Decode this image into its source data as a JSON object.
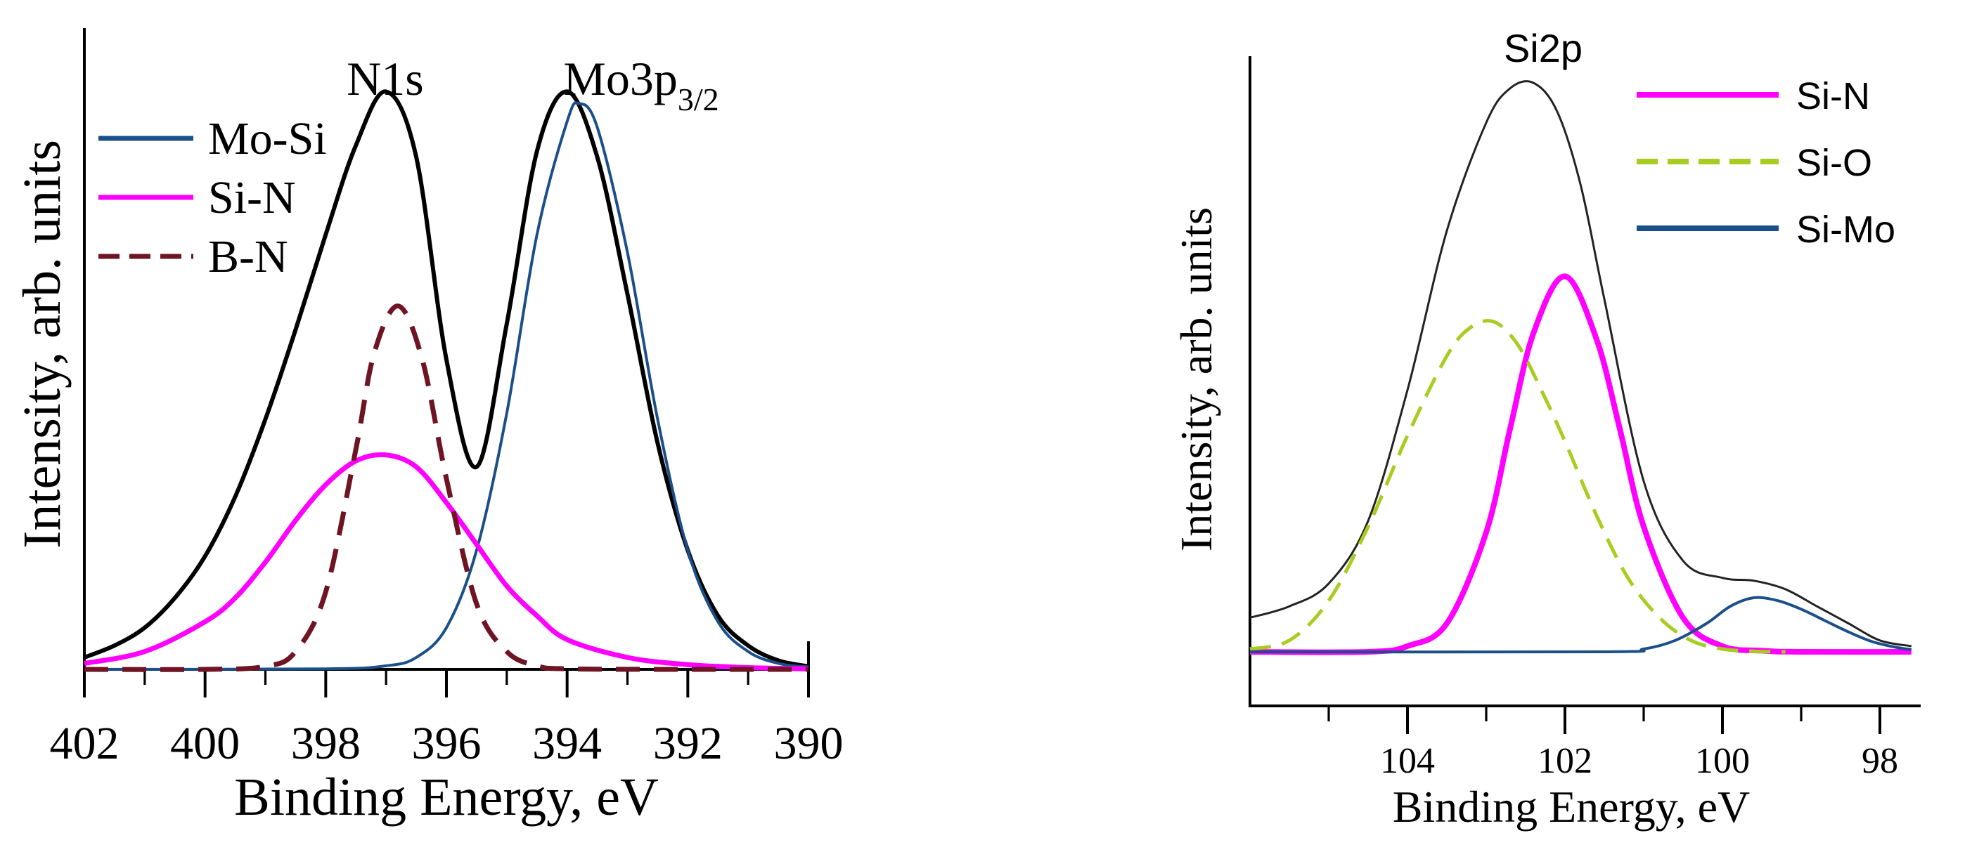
{
  "chart_data": [
    {
      "type": "line",
      "title": "",
      "xlabel": "Binding Energy, eV",
      "ylabel": "Intensity, arb. units",
      "xlim": [
        402,
        390
      ],
      "ylim": [
        0,
        1.0
      ],
      "x_ticks": [
        402,
        400,
        398,
        396,
        394,
        392,
        390
      ],
      "x_minor_ticks": [
        401,
        399,
        397,
        395,
        393,
        391
      ],
      "peak_labels": [
        {
          "text": "N1s",
          "x": 396.8
        },
        {
          "text": "Mo3p",
          "sub": "3/2",
          "x": 393.8
        }
      ],
      "legend": {
        "position": "top-left",
        "entries": [
          "Mo-Si",
          "Si-N",
          "B-N"
        ]
      },
      "series": [
        {
          "name": "Envelope",
          "color": "#000000",
          "dash": "solid",
          "in_legend": false,
          "x": [
            402,
            401.5,
            401,
            400.5,
            400,
            399.5,
            399,
            398.5,
            398,
            397.5,
            397,
            396.5,
            396,
            395.5,
            395,
            394.5,
            394,
            393.5,
            393,
            392.5,
            392,
            391.5,
            391,
            390.5,
            390
          ],
          "y": [
            0.02,
            0.04,
            0.07,
            0.12,
            0.19,
            0.29,
            0.42,
            0.57,
            0.73,
            0.88,
            0.97,
            0.86,
            0.52,
            0.34,
            0.58,
            0.87,
            0.97,
            0.86,
            0.63,
            0.38,
            0.2,
            0.09,
            0.04,
            0.015,
            0.005
          ]
        },
        {
          "name": "Mo-Si",
          "color": "#1b4f8a",
          "dash": "solid",
          "in_legend": true,
          "x": [
            402,
            398,
            397,
            396.5,
            396,
            395.5,
            395,
            394.5,
            394,
            393.8,
            393.5,
            393,
            392.5,
            392,
            391.5,
            391,
            390.5,
            390
          ],
          "y": [
            0,
            0.001,
            0.006,
            0.02,
            0.07,
            0.2,
            0.43,
            0.73,
            0.92,
            0.95,
            0.91,
            0.7,
            0.42,
            0.2,
            0.08,
            0.03,
            0.01,
            0.004
          ]
        },
        {
          "name": "Si-N",
          "color": "#ff00ff",
          "dash": "solid",
          "in_legend": true,
          "x": [
            402,
            401,
            400,
            399.5,
            399,
            398.5,
            398,
            397.5,
            397,
            396.5,
            396,
            395.5,
            395,
            394.5,
            394,
            393,
            392,
            391,
            390
          ],
          "y": [
            0.01,
            0.03,
            0.08,
            0.12,
            0.18,
            0.25,
            0.31,
            0.35,
            0.36,
            0.34,
            0.28,
            0.21,
            0.14,
            0.09,
            0.05,
            0.02,
            0.008,
            0.003,
            0.001
          ]
        },
        {
          "name": "B-N",
          "color": "#6e1423",
          "dash": "dashed",
          "in_legend": true,
          "x": [
            402,
            400,
            399,
            398.5,
            398,
            397.5,
            397.2,
            396.8,
            396.4,
            396,
            395.5,
            395,
            394.5,
            394,
            392,
            390
          ],
          "y": [
            0,
            0,
            0.005,
            0.03,
            0.13,
            0.37,
            0.53,
            0.61,
            0.52,
            0.32,
            0.11,
            0.03,
            0.006,
            0.001,
            0,
            0
          ]
        }
      ]
    },
    {
      "type": "line",
      "title": "",
      "xlabel": "Binding Energy, eV",
      "ylabel": "Intensity, arb. units",
      "xlim": [
        106,
        97.5
      ],
      "ylim": [
        0,
        1.0
      ],
      "x_ticks": [
        104,
        102,
        100,
        98
      ],
      "x_minor_ticks": [
        105,
        103,
        101,
        99
      ],
      "peak_labels": [
        {
          "text": "Si2p",
          "x": 102.4
        }
      ],
      "legend": {
        "position": "top-right",
        "entries": [
          "Si-N",
          "Si-O",
          "Si-Mo"
        ]
      },
      "series": [
        {
          "name": "Envelope",
          "color": "#222222",
          "dash": "solid",
          "in_legend": false,
          "x": [
            106,
            105.5,
            105,
            104.5,
            104,
            103.5,
            103,
            102.7,
            102.4,
            102.1,
            101.8,
            101.5,
            101,
            100.5,
            100,
            99.6,
            99.2,
            98.8,
            98.4,
            98,
            97.6
          ],
          "y": [
            0.06,
            0.08,
            0.12,
            0.23,
            0.46,
            0.74,
            0.93,
            0.99,
            1.0,
            0.95,
            0.82,
            0.62,
            0.3,
            0.16,
            0.13,
            0.125,
            0.11,
            0.08,
            0.05,
            0.02,
            0.01
          ]
        },
        {
          "name": "Si-N",
          "color": "#ff00ff",
          "dash": "solid",
          "in_legend": true,
          "x": [
            106,
            104.5,
            104,
            103.5,
            103,
            102.7,
            102.4,
            102,
            101.6,
            101.3,
            101,
            100.5,
            100,
            99.5,
            99,
            97.6
          ],
          "y": [
            0,
            0,
            0.01,
            0.05,
            0.21,
            0.39,
            0.56,
            0.66,
            0.55,
            0.39,
            0.22,
            0.06,
            0.01,
            0.002,
            0,
            0
          ]
        },
        {
          "name": "Si-O",
          "color": "#a8cc1f",
          "dash": "dashed",
          "in_legend": true,
          "x": [
            106,
            105.5,
            105,
            104.5,
            104,
            103.5,
            103.2,
            102.9,
            102.6,
            102.3,
            102,
            101.6,
            101.2,
            100.8,
            100.4,
            100,
            99.6,
            99.2
          ],
          "y": [
            0.005,
            0.02,
            0.09,
            0.22,
            0.38,
            0.52,
            0.57,
            0.58,
            0.54,
            0.46,
            0.37,
            0.24,
            0.13,
            0.06,
            0.02,
            0.005,
            0.001,
            0
          ]
        },
        {
          "name": "Si-Mo",
          "color": "#1b4f8a",
          "dash": "solid",
          "in_legend": true,
          "x": [
            106,
            101.5,
            101,
            100.6,
            100.2,
            99.9,
            99.6,
            99.3,
            99,
            98.7,
            98.4,
            98.1,
            97.8,
            97.6
          ],
          "y": [
            0,
            0,
            0.005,
            0.02,
            0.05,
            0.08,
            0.095,
            0.09,
            0.075,
            0.055,
            0.035,
            0.018,
            0.008,
            0.004
          ]
        }
      ]
    }
  ]
}
